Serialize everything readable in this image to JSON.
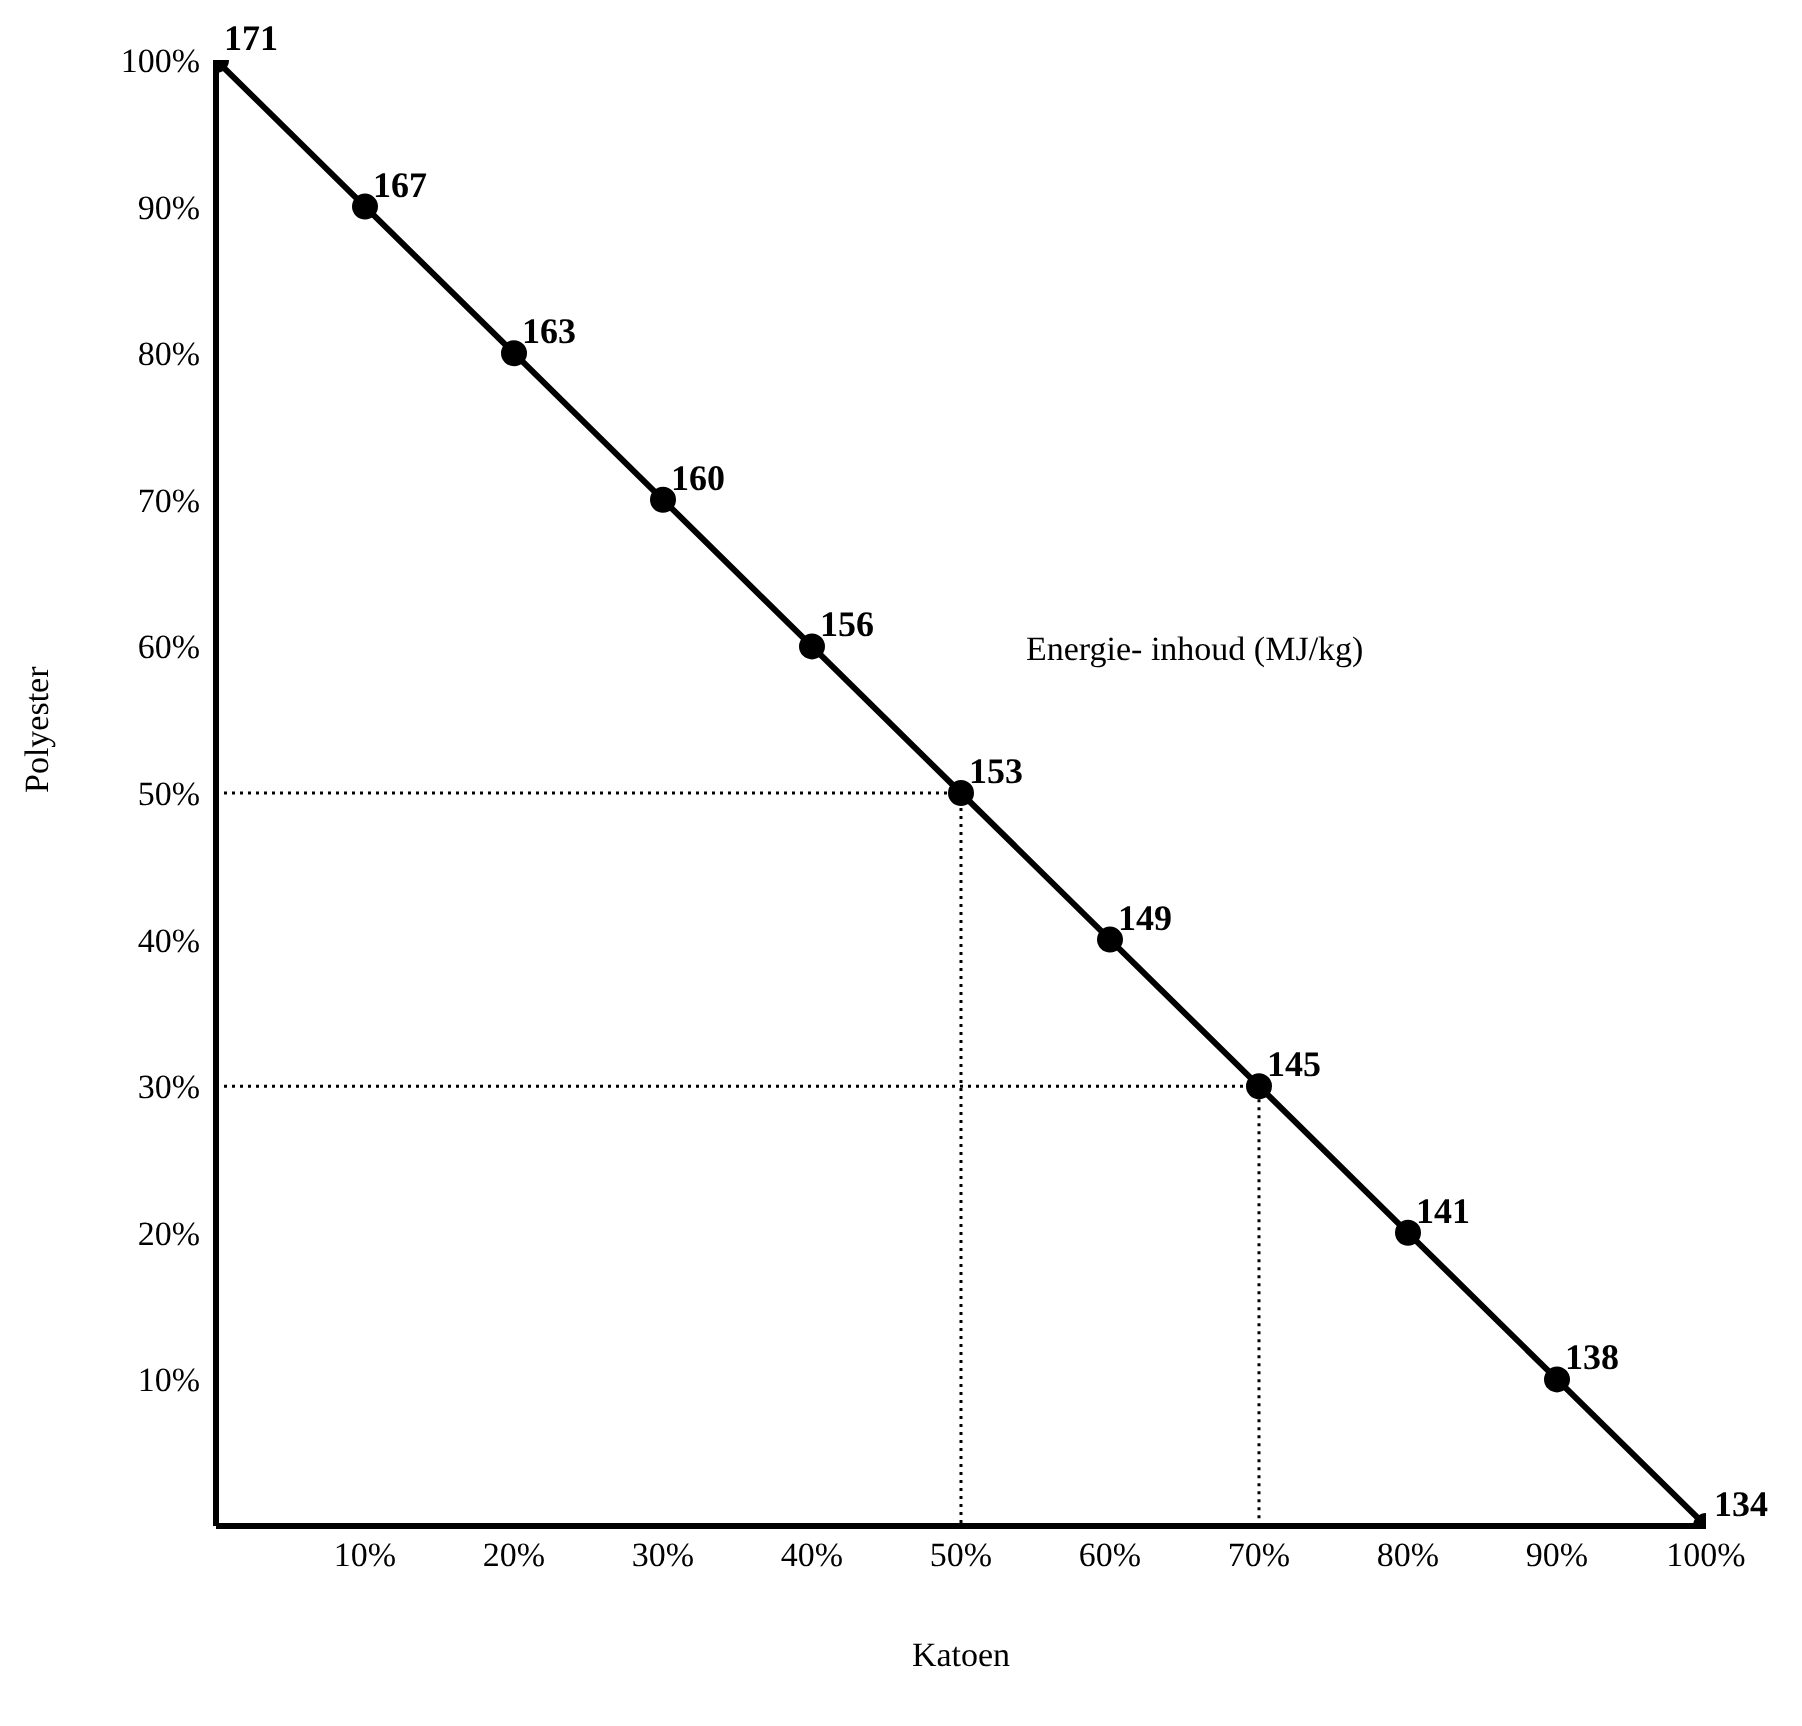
{
  "chart_data": {
    "type": "line",
    "xlabel": "Katoen",
    "ylabel": "Polyester",
    "x": [
      0,
      10,
      20,
      30,
      40,
      50,
      60,
      70,
      80,
      90,
      100
    ],
    "series": [
      {
        "color": "#000000",
        "values": [
          100,
          90,
          80,
          70,
          60,
          50,
          40,
          30,
          20,
          10,
          0
        ],
        "marker": "circle",
        "line_style": "solid"
      },
      {
        "color": "#000000",
        "x": [
          0,
          50,
          50
        ],
        "values": [
          50,
          50,
          0
        ],
        "marker": "none",
        "line_style": "dotted"
      },
      {
        "color": "#000000",
        "x": [
          0,
          70,
          70
        ],
        "values": [
          30,
          30,
          0
        ],
        "marker": "none",
        "line_style": "dotted"
      }
    ],
    "xlim": [
      0,
      100
    ],
    "ylim": [
      0,
      100
    ],
    "xticks": [
      {
        "value": 10,
        "label": "10%"
      },
      {
        "value": 20,
        "label": "20%"
      },
      {
        "value": 30,
        "label": "30%"
      },
      {
        "value": 40,
        "label": "40%"
      },
      {
        "value": 50,
        "label": "50%"
      },
      {
        "value": 60,
        "label": "60%"
      },
      {
        "value": 70,
        "label": "70%"
      },
      {
        "value": 80,
        "label": "80%"
      },
      {
        "value": 90,
        "label": "90%"
      },
      {
        "value": 100,
        "label": "100%"
      }
    ],
    "yticks": [
      {
        "value": 10,
        "label": "10%"
      },
      {
        "value": 20,
        "label": "20%"
      },
      {
        "value": 30,
        "label": "30%"
      },
      {
        "value": 40,
        "label": "40%"
      },
      {
        "value": 50,
        "label": "50%"
      },
      {
        "value": 60,
        "label": "60%"
      },
      {
        "value": 70,
        "label": "70%"
      },
      {
        "value": 80,
        "label": "80%"
      },
      {
        "value": 90,
        "label": "90%"
      },
      {
        "value": 100,
        "label": "100%"
      }
    ],
    "annotations": [
      {
        "text": "171",
        "x": 0,
        "y": 100
      },
      {
        "text": "167",
        "x": 10,
        "y": 90
      },
      {
        "text": "163",
        "x": 20,
        "y": 80
      },
      {
        "text": "160",
        "x": 30,
        "y": 70
      },
      {
        "text": "156",
        "x": 40,
        "y": 60
      },
      {
        "text": "153",
        "x": 50,
        "y": 50
      },
      {
        "text": "149",
        "x": 60,
        "y": 40
      },
      {
        "text": "145",
        "x": 70,
        "y": 30
      },
      {
        "text": "141",
        "x": 80,
        "y": 20
      },
      {
        "text": "138",
        "x": 90,
        "y": 10
      },
      {
        "text": "134",
        "x": 100,
        "y": 0
      },
      "Energie- inhoud (MJ/kg)"
    ]
  }
}
